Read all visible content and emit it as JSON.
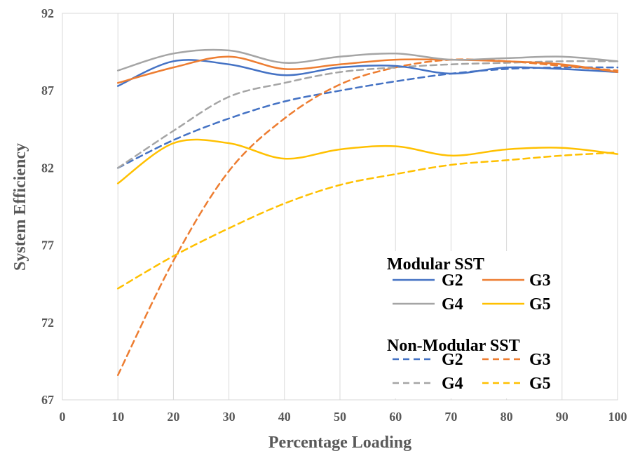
{
  "chart_data": {
    "type": "line",
    "xlabel": "Percentage Loading",
    "ylabel": "System Efficiency",
    "xlim": [
      0,
      100
    ],
    "ylim": [
      67,
      92
    ],
    "xticks": [
      0,
      10,
      20,
      30,
      40,
      50,
      60,
      70,
      80,
      90,
      100
    ],
    "yticks": [
      67,
      72,
      77,
      82,
      87,
      92
    ],
    "grid": "vertical",
    "legend": {
      "placement": "bottom-right",
      "groups": [
        {
          "title": "Modular SST",
          "entries": [
            "G2",
            "G3",
            "G4",
            "G5"
          ]
        },
        {
          "title": "Non-Modular SST",
          "entries": [
            "G2",
            "G3",
            "G4",
            "G5"
          ]
        }
      ]
    },
    "x": [
      10,
      20,
      30,
      40,
      50,
      60,
      70,
      80,
      90,
      100
    ],
    "series": [
      {
        "name": "G2",
        "group": "Modular SST",
        "style": "solid",
        "color": "#4472C4",
        "values": [
          87.3,
          88.9,
          88.7,
          88.0,
          88.5,
          88.6,
          88.1,
          88.5,
          88.4,
          88.2
        ]
      },
      {
        "name": "G3",
        "group": "Modular SST",
        "style": "solid",
        "color": "#ED7D31",
        "values": [
          87.5,
          88.5,
          89.2,
          88.4,
          88.7,
          89.0,
          89.0,
          88.9,
          88.7,
          88.2
        ]
      },
      {
        "name": "G4",
        "group": "Modular SST",
        "style": "solid",
        "color": "#A5A5A5",
        "values": [
          88.3,
          89.4,
          89.6,
          88.8,
          89.2,
          89.4,
          89.0,
          89.1,
          89.2,
          88.9
        ]
      },
      {
        "name": "G5",
        "group": "Modular SST",
        "style": "solid",
        "color": "#FFC000",
        "values": [
          81.0,
          83.6,
          83.6,
          82.6,
          83.2,
          83.4,
          82.8,
          83.2,
          83.3,
          82.9
        ]
      },
      {
        "name": "G2",
        "group": "Non-Modular SST",
        "style": "dashed",
        "color": "#4472C4",
        "values": [
          82.0,
          83.8,
          85.2,
          86.3,
          87.0,
          87.6,
          88.1,
          88.4,
          88.5,
          88.5
        ]
      },
      {
        "name": "G3",
        "group": "Non-Modular SST",
        "style": "dashed",
        "color": "#ED7D31",
        "values": [
          68.6,
          76.0,
          81.8,
          85.2,
          87.4,
          88.5,
          89.0,
          88.9,
          88.6,
          88.3
        ]
      },
      {
        "name": "G4",
        "group": "Non-Modular SST",
        "style": "dashed",
        "color": "#A5A5A5",
        "values": [
          82.0,
          84.4,
          86.6,
          87.5,
          88.2,
          88.5,
          88.7,
          88.8,
          88.9,
          88.9
        ]
      },
      {
        "name": "G5",
        "group": "Non-Modular SST",
        "style": "dashed",
        "color": "#FFC000",
        "values": [
          74.2,
          76.3,
          78.1,
          79.7,
          80.9,
          81.6,
          82.2,
          82.5,
          82.8,
          83.0
        ]
      }
    ]
  }
}
